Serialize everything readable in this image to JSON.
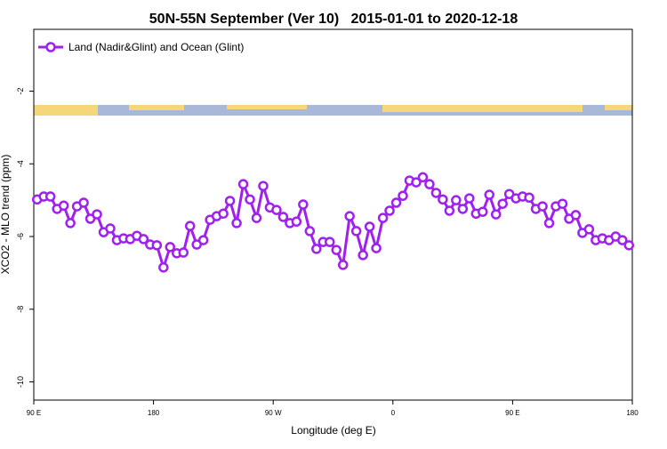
{
  "chart_data": {
    "type": "line",
    "title": "50N-55N September (Ver 10)   2015-01-01 to 2020-12-18",
    "xlabel": "Longitude (deg E)",
    "ylabel": "XCO2 - MLO trend (ppm)",
    "x": [
      92.5,
      97.5,
      102.5,
      107.5,
      112.5,
      117.5,
      122.5,
      127.5,
      132.5,
      137.5,
      142.5,
      147.5,
      152.5,
      157.5,
      162.5,
      167.5,
      172.5,
      177.5,
      182.5,
      187.5,
      192.5,
      197.5,
      202.5,
      207.5,
      212.5,
      217.5,
      222.5,
      227.5,
      232.5,
      237.5,
      242.5,
      247.5,
      252.5,
      257.5,
      262.5,
      267.5,
      272.5,
      277.5,
      282.5,
      287.5,
      292.5,
      297.5,
      302.5,
      307.5,
      312.5,
      317.5,
      322.5,
      327.5,
      332.5,
      337.5,
      342.5,
      347.5,
      352.5,
      357.5,
      362.5,
      367.5,
      372.5,
      377.5,
      382.5,
      387.5,
      392.5,
      397.5,
      402.5,
      407.5,
      412.5,
      417.5,
      422.5,
      427.5,
      432.5,
      437.5,
      442.5,
      447.5,
      452.5,
      457.5,
      462.5,
      467.5,
      472.5,
      477.5,
      482.5,
      487.5,
      492.5,
      497.5,
      502.5,
      507.5,
      512.5,
      517.5,
      522.5,
      527.5,
      532.5,
      537.5
    ],
    "series": [
      {
        "name": "Land (Nadir&Glint) and Ocean (Glint)",
        "color": "#a020f0",
        "values": [
          -4.98,
          -4.9,
          -4.9,
          -5.24,
          -5.15,
          -5.63,
          -5.17,
          -5.07,
          -5.51,
          -5.39,
          -5.88,
          -5.78,
          -6.1,
          -6.05,
          -6.07,
          -5.98,
          -6.07,
          -6.22,
          -6.24,
          -6.85,
          -6.29,
          -6.46,
          -6.44,
          -5.71,
          -6.22,
          -6.1,
          -5.54,
          -5.44,
          -5.37,
          -5.02,
          -5.63,
          -4.56,
          -4.98,
          -5.49,
          -4.61,
          -5.2,
          -5.27,
          -5.46,
          -5.63,
          -5.59,
          -5.12,
          -5.85,
          -6.34,
          -6.15,
          -6.15,
          -6.37,
          -6.78,
          -5.44,
          -5.85,
          -6.51,
          -5.73,
          -6.32,
          -5.49,
          -5.29,
          -5.07,
          -4.88,
          -4.46,
          -4.51,
          -4.37,
          -4.56,
          -4.8,
          -4.98,
          -5.29,
          -5.0,
          -5.24,
          -4.95,
          -5.37,
          -5.32,
          -4.85,
          -5.39,
          -5.1,
          -4.83,
          -4.95,
          -4.9,
          -4.93,
          -5.24,
          -5.17,
          -5.63,
          -5.17,
          -5.1,
          -5.51,
          -5.41,
          -5.9,
          -5.8,
          -6.1,
          -6.05,
          -6.1,
          -6.0,
          -6.1,
          -6.24
        ]
      }
    ],
    "xlim": [
      90,
      540
    ],
    "xticks": [
      {
        "value": 90,
        "label": "90 E"
      },
      180,
      {
        "value": 270,
        "label": "90 W"
      },
      {
        "value": 360,
        "label": "0"
      },
      {
        "value": 450,
        "label": "90 E"
      },
      {
        "value": 540,
        "label": "180"
      }
    ],
    "ylim": [
      -10.5,
      -0.3
    ],
    "yticks": [
      -2,
      -4,
      -6,
      -8,
      -10
    ],
    "legend": "upper-left"
  }
}
